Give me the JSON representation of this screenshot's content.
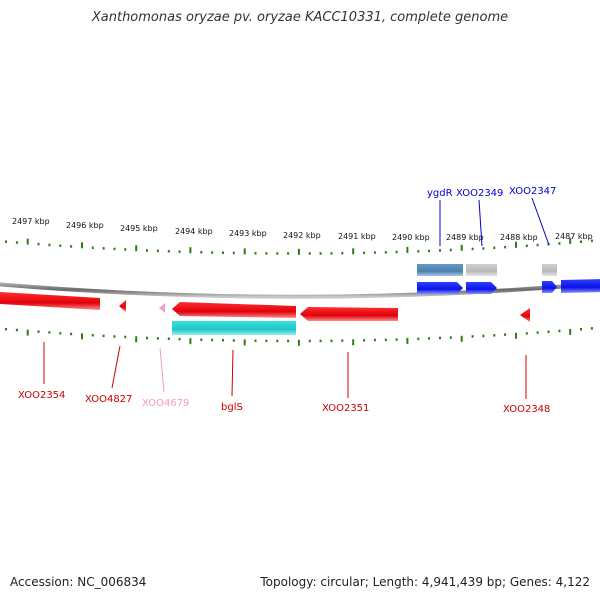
{
  "title": "Xanthomonas oryzae pv. oryzae KACC10331, complete genome",
  "footer": {
    "accession": "Accession: NC_006834",
    "summary": "Topology: circular; Length: 4,941,439 bp; Genes: 4,122"
  },
  "colors": {
    "backbone": "#8a8a8a",
    "ticks": "#2e7d10",
    "red_gene": "#e0000a",
    "blue_gene": "#0a14e6",
    "cyan_gene": "#1cc7c9",
    "steelblue_gene": "#4a7fb0",
    "gray_gene": "#b8b8b8",
    "pink_gene": "#f4a0c8",
    "label_red": "#cc0000",
    "label_blue": "#0000cc",
    "label_pink": "#f29ac4"
  },
  "scale": {
    "labels": [
      "2497 kbp",
      "2496 kbp",
      "2495 kbp",
      "2494 kbp",
      "2493 kbp",
      "2492 kbp",
      "2491 kbp",
      "2490 kbp",
      "2489 kbp",
      "2488 kbp",
      "2487 kbp"
    ]
  },
  "genes": [
    {
      "label": "XOO2354",
      "color": "label_red"
    },
    {
      "label": "XOO4827",
      "color": "label_red"
    },
    {
      "label": "XOO4679",
      "color": "label_pink"
    },
    {
      "label": "bglS",
      "color": "label_red"
    },
    {
      "label": "XOO2351",
      "color": "label_red"
    },
    {
      "label": "XOO2348",
      "color": "label_red"
    },
    {
      "label": "ygdR",
      "color": "label_blue"
    },
    {
      "label": "XOO2349",
      "color": "label_blue"
    },
    {
      "label": "XOO2347",
      "color": "label_blue"
    }
  ]
}
